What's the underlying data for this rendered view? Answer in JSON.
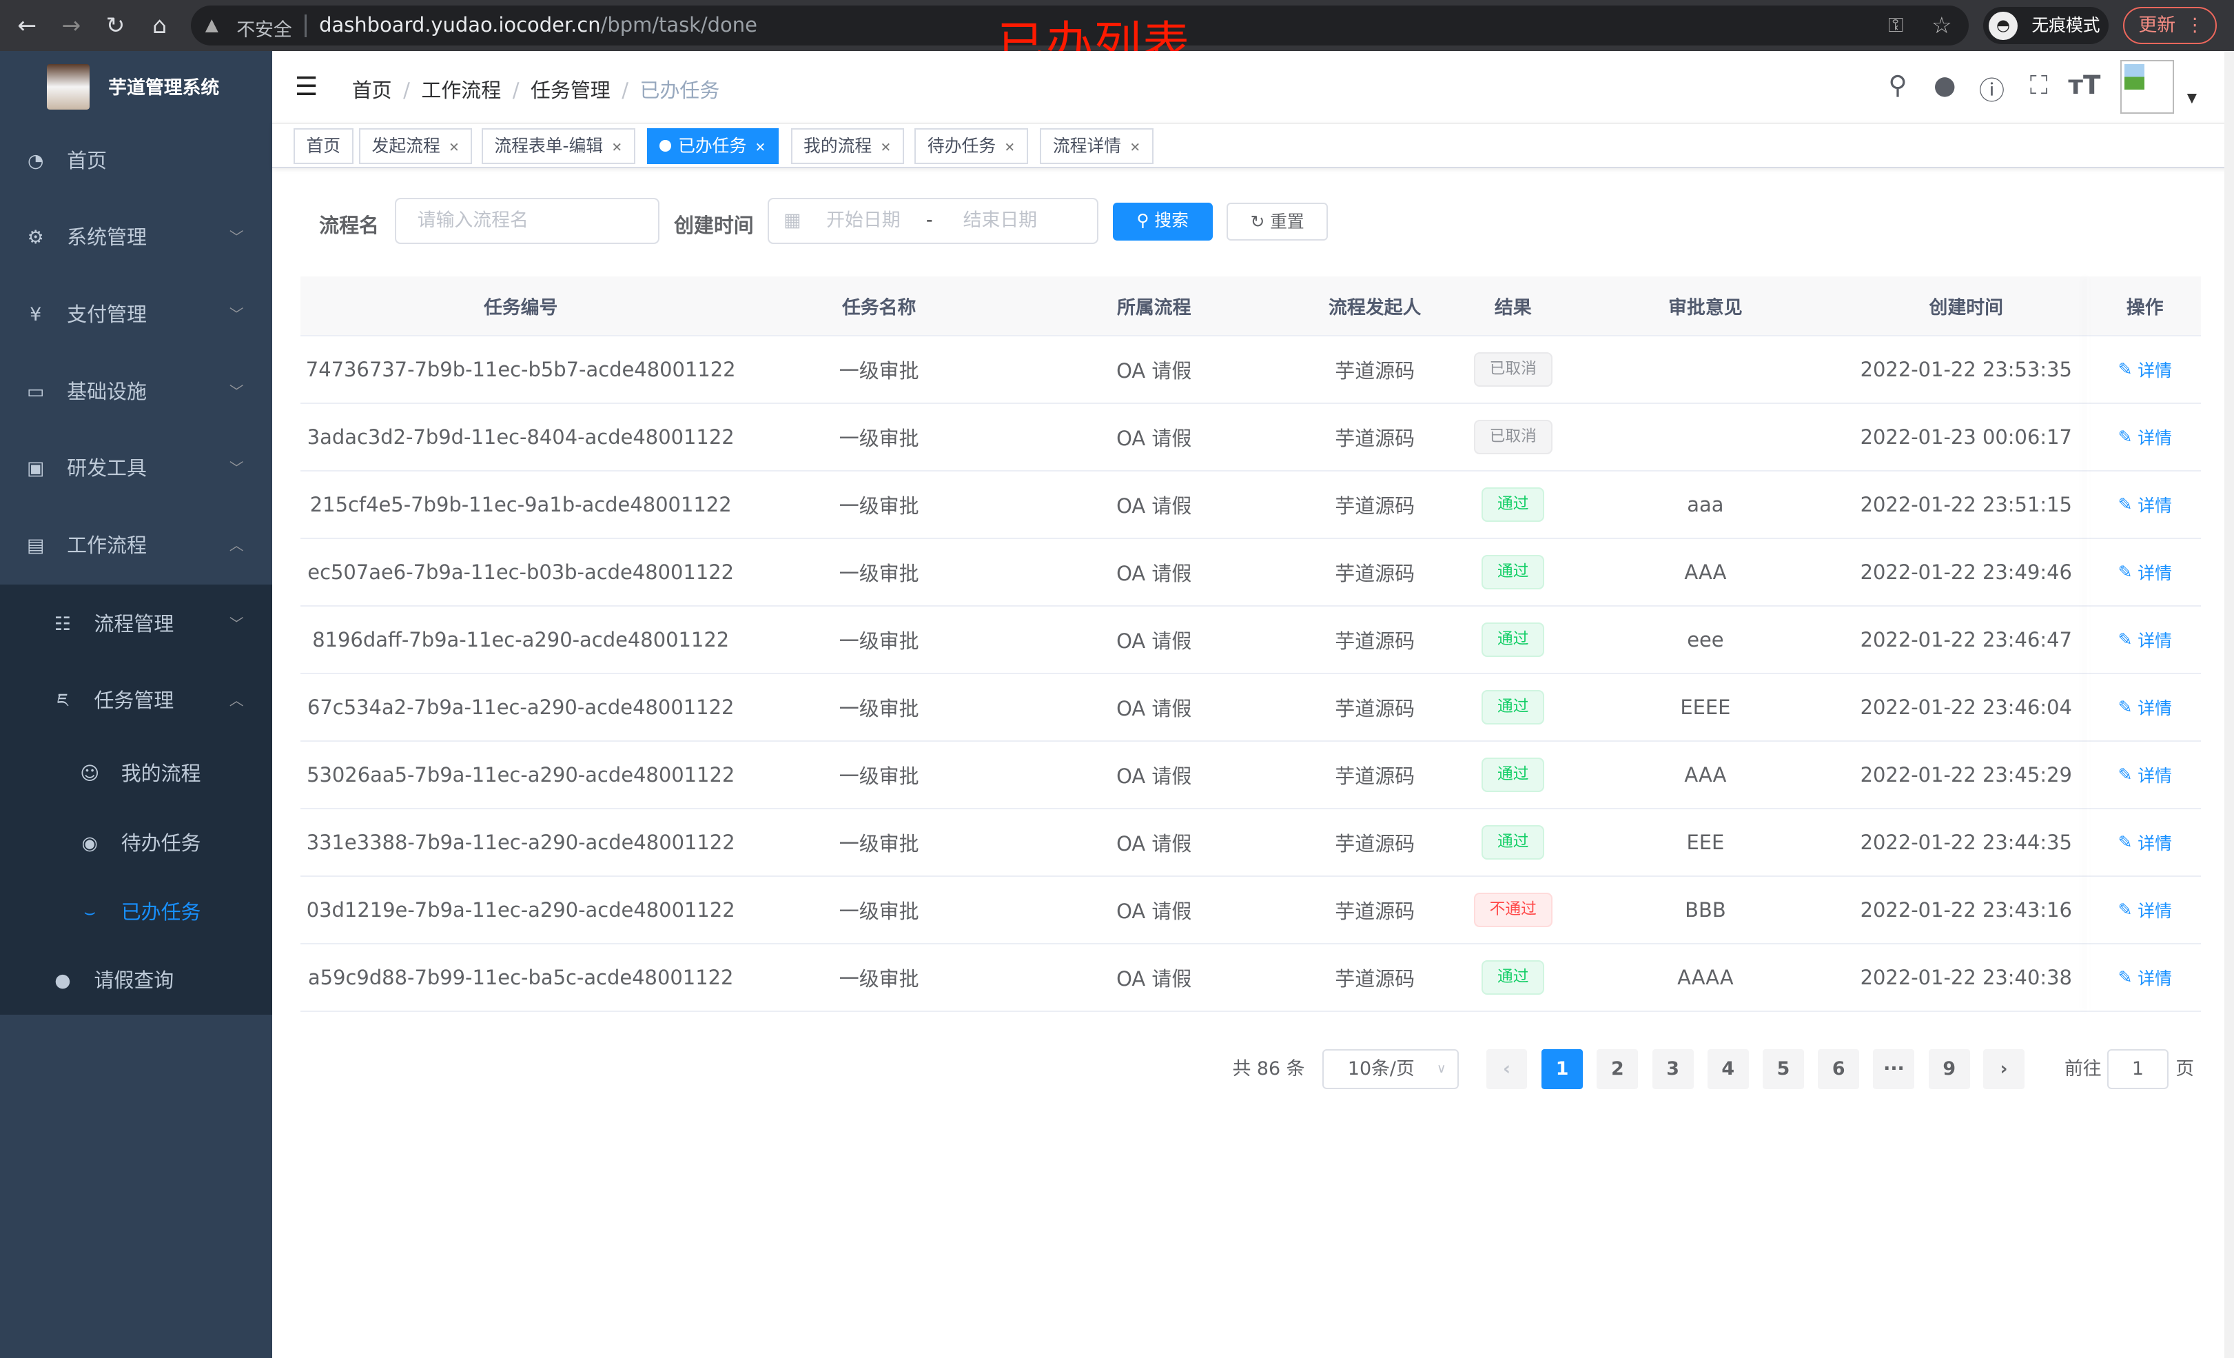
{
  "browser": {
    "insecure_label": "不安全",
    "url_host": "dashboard.yudao.iocoder.cn",
    "url_path": "/bpm/task/done",
    "incognito_label": "无痕模式",
    "update_label": "更新"
  },
  "annotation": "已办列表",
  "sidebar": {
    "title": "芋道管理系统",
    "items": [
      {
        "label": "首页",
        "icon": "dashboard-icon"
      },
      {
        "label": "系统管理",
        "icon": "gear-icon"
      },
      {
        "label": "支付管理",
        "icon": "yen-icon"
      },
      {
        "label": "基础设施",
        "icon": "monitor-icon"
      },
      {
        "label": "研发工具",
        "icon": "toolbox-icon"
      },
      {
        "label": "工作流程",
        "icon": "briefcase-icon"
      }
    ],
    "sub": [
      {
        "label": "流程管理",
        "icon": "list-icon"
      },
      {
        "label": "任务管理",
        "icon": "task-icon"
      }
    ],
    "sub2": [
      {
        "label": "我的流程",
        "icon": "robot-icon"
      },
      {
        "label": "待办任务",
        "icon": "eye-icon"
      },
      {
        "label": "已办任务",
        "icon": "eye-closed-icon"
      }
    ],
    "leave": {
      "label": "请假查询",
      "icon": "user-icon"
    }
  },
  "breadcrumb": [
    "首页",
    "工作流程",
    "任务管理",
    "已办任务"
  ],
  "tags": [
    {
      "label": "首页"
    },
    {
      "label": "发起流程"
    },
    {
      "label": "流程表单-编辑"
    },
    {
      "label": "已办任务",
      "active": true
    },
    {
      "label": "我的流程"
    },
    {
      "label": "待办任务"
    },
    {
      "label": "流程详情"
    }
  ],
  "search": {
    "name_label": "流程名",
    "name_placeholder": "请输入流程名",
    "time_label": "创建时间",
    "start_placeholder": "开始日期",
    "range_sep": "-",
    "end_placeholder": "结束日期",
    "search_btn": "搜索",
    "reset_btn": "重置"
  },
  "table": {
    "headers": [
      "任务编号",
      "任务名称",
      "所属流程",
      "流程发起人",
      "结果",
      "审批意见",
      "创建时间",
      "操作"
    ],
    "rows": [
      {
        "id": "74736737-7b9b-11ec-b5b7-acde48001122",
        "name": "一级审批",
        "process": "OA 请假",
        "starter": "芋道源码",
        "result": "已取消",
        "result_type": "info",
        "comment": "",
        "time": "2022-01-22 23:53:35",
        "op": "详情"
      },
      {
        "id": "3adac3d2-7b9d-11ec-8404-acde48001122",
        "name": "一级审批",
        "process": "OA 请假",
        "starter": "芋道源码",
        "result": "已取消",
        "result_type": "info",
        "comment": "",
        "time": "2022-01-23 00:06:17",
        "op": "详情"
      },
      {
        "id": "215cf4e5-7b9b-11ec-9a1b-acde48001122",
        "name": "一级审批",
        "process": "OA 请假",
        "starter": "芋道源码",
        "result": "通过",
        "result_type": "success",
        "comment": "aaa",
        "time": "2022-01-22 23:51:15",
        "op": "详情"
      },
      {
        "id": "ec507ae6-7b9a-11ec-b03b-acde48001122",
        "name": "一级审批",
        "process": "OA 请假",
        "starter": "芋道源码",
        "result": "通过",
        "result_type": "success",
        "comment": "AAA",
        "time": "2022-01-22 23:49:46",
        "op": "详情"
      },
      {
        "id": "8196daff-7b9a-11ec-a290-acde48001122",
        "name": "一级审批",
        "process": "OA 请假",
        "starter": "芋道源码",
        "result": "通过",
        "result_type": "success",
        "comment": "eee",
        "time": "2022-01-22 23:46:47",
        "op": "详情"
      },
      {
        "id": "67c534a2-7b9a-11ec-a290-acde48001122",
        "name": "一级审批",
        "process": "OA 请假",
        "starter": "芋道源码",
        "result": "通过",
        "result_type": "success",
        "comment": "EEEE",
        "time": "2022-01-22 23:46:04",
        "op": "详情"
      },
      {
        "id": "53026aa5-7b9a-11ec-a290-acde48001122",
        "name": "一级审批",
        "process": "OA 请假",
        "starter": "芋道源码",
        "result": "通过",
        "result_type": "success",
        "comment": "AAA",
        "time": "2022-01-22 23:45:29",
        "op": "详情"
      },
      {
        "id": "331e3388-7b9a-11ec-a290-acde48001122",
        "name": "一级审批",
        "process": "OA 请假",
        "starter": "芋道源码",
        "result": "通过",
        "result_type": "success",
        "comment": "EEE",
        "time": "2022-01-22 23:44:35",
        "op": "详情"
      },
      {
        "id": "03d1219e-7b9a-11ec-a290-acde48001122",
        "name": "一级审批",
        "process": "OA 请假",
        "starter": "芋道源码",
        "result": "不通过",
        "result_type": "danger",
        "comment": "BBB",
        "time": "2022-01-22 23:43:16",
        "op": "详情"
      },
      {
        "id": "a59c9d88-7b99-11ec-ba5c-acde48001122",
        "name": "一级审批",
        "process": "OA 请假",
        "starter": "芋道源码",
        "result": "通过",
        "result_type": "success",
        "comment": "AAAA",
        "time": "2022-01-22 23:40:38",
        "op": "详情"
      }
    ]
  },
  "pagination": {
    "total_label": "共 86 条",
    "page_size": "10条/页",
    "pages": [
      "1",
      "2",
      "3",
      "4",
      "5",
      "6",
      "···",
      "9"
    ],
    "current": "1",
    "goto_label": "前往",
    "goto_value": "1",
    "page_suffix": "页"
  },
  "colors": {
    "primary": "#1890ff",
    "sidebar": "#304156",
    "submenu": "#1f2d3d",
    "success": "#13ce66",
    "danger": "#ff4949",
    "annotation": "#ff1a00"
  }
}
